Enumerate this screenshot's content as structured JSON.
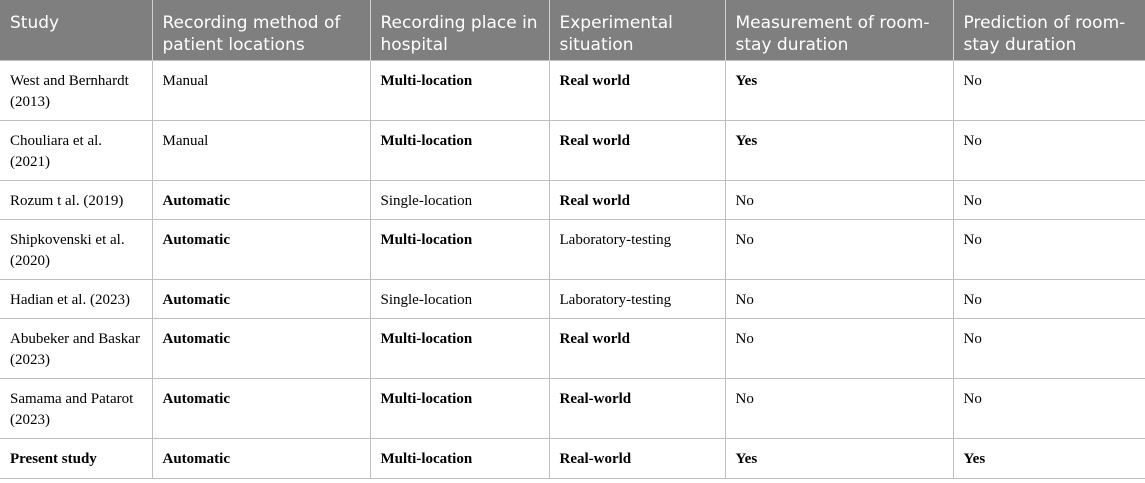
{
  "headers": [
    "Study",
    "Recording method of patient locations",
    "Recording place in hospital",
    "Experimental situation",
    "Measurement of room-stay duration",
    "Prediction of room-stay duration"
  ],
  "rows": [
    {
      "study": "West and Bernhardt (2013)",
      "method": "Manual",
      "place": "Multi-location",
      "situation": "Real world",
      "measurement": "Yes",
      "prediction": "No"
    },
    {
      "study": "Chouliara et al. (2021)",
      "method": "Manual",
      "place": "Multi-location",
      "situation": "Real world",
      "measurement": "Yes",
      "prediction": "No"
    },
    {
      "study": "Rozum t al. (2019)",
      "method": "Automatic",
      "place": "Single-location",
      "situation": "Real world",
      "measurement": "No",
      "prediction": "No"
    },
    {
      "study": "Shipkovenski et al. (2020)",
      "method": "Automatic",
      "place": "Multi-location",
      "situation": "Laboratory-testing",
      "measurement": "No",
      "prediction": "No"
    },
    {
      "study": "Hadian et al. (2023)",
      "method": "Automatic",
      "place": "Single-location",
      "situation": "Laboratory-testing",
      "measurement": "No",
      "prediction": "No"
    },
    {
      "study": "Abubeker and Baskar (2023)",
      "method": "Automatic",
      "place": "Multi-location",
      "situation": "Real world",
      "measurement": "No",
      "prediction": "No"
    },
    {
      "study": "Samama and Patarot (2023)",
      "method": "Automatic",
      "place": "Multi-location",
      "situation": "Real-world",
      "measurement": "No",
      "prediction": "No"
    },
    {
      "study": "Present study",
      "method": "Automatic",
      "place": "Multi-location",
      "situation": "Real-world",
      "measurement": "Yes",
      "prediction": "Yes"
    }
  ]
}
